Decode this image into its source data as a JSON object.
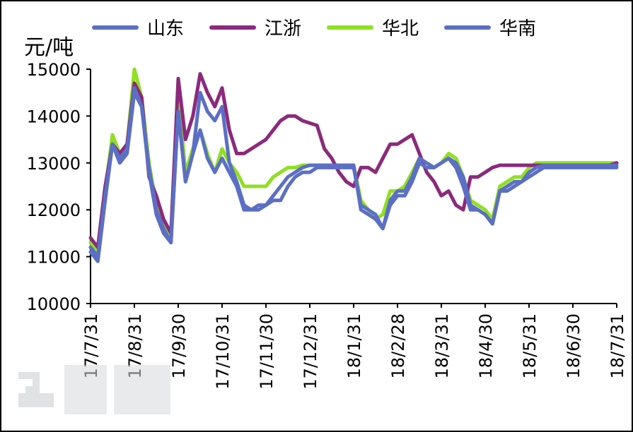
{
  "chart_data": {
    "type": "line",
    "ylabel": "元/吨",
    "ylim": [
      10000,
      15000
    ],
    "yticks": [
      10000,
      11000,
      12000,
      13000,
      14000,
      15000
    ],
    "xticks": [
      "17/7/31",
      "17/8/31",
      "17/9/30",
      "17/10/31",
      "17/11/30",
      "17/12/31",
      "18/1/31",
      "18/2/28",
      "18/3/31",
      "18/4/30",
      "18/5/31",
      "18/6/30",
      "18/7/31"
    ],
    "x": [
      "17/7/31",
      "17/8/5",
      "17/8/10",
      "17/8/15",
      "17/8/20",
      "17/8/25",
      "17/8/31",
      "17/9/5",
      "17/9/10",
      "17/9/15",
      "17/9/20",
      "17/9/25",
      "17/9/30",
      "17/10/5",
      "17/10/10",
      "17/10/15",
      "17/10/20",
      "17/10/25",
      "17/10/31",
      "17/11/5",
      "17/11/10",
      "17/11/15",
      "17/11/20",
      "17/11/25",
      "17/11/30",
      "17/12/5",
      "17/12/10",
      "17/12/15",
      "17/12/20",
      "17/12/25",
      "17/12/31",
      "18/1/5",
      "18/1/10",
      "18/1/15",
      "18/1/20",
      "18/1/25",
      "18/1/31",
      "18/2/5",
      "18/2/10",
      "18/2/15",
      "18/2/20",
      "18/2/25",
      "18/2/28",
      "18/3/5",
      "18/3/10",
      "18/3/15",
      "18/3/20",
      "18/3/25",
      "18/3/31",
      "18/4/5",
      "18/4/10",
      "18/4/15",
      "18/4/20",
      "18/4/25",
      "18/4/30",
      "18/5/5",
      "18/5/10",
      "18/5/15",
      "18/5/20",
      "18/5/25",
      "18/5/31",
      "18/6/5",
      "18/6/10",
      "18/6/15",
      "18/6/20",
      "18/6/25",
      "18/6/30",
      "18/7/5",
      "18/7/10",
      "18/7/15",
      "18/7/20",
      "18/7/25",
      "18/7/31"
    ],
    "series": [
      {
        "name": "山东",
        "color": "#5b6fc4",
        "values": [
          11200,
          11000,
          12300,
          13400,
          13100,
          13300,
          14600,
          14200,
          12900,
          12000,
          11600,
          11300,
          14100,
          12600,
          13200,
          14500,
          14100,
          13900,
          14200,
          13000,
          12600,
          12100,
          12000,
          12100,
          12100,
          12200,
          12200,
          12500,
          12700,
          12800,
          12800,
          12900,
          12900,
          12900,
          12900,
          12900,
          12900,
          12100,
          12000,
          11900,
          11600,
          12200,
          12400,
          12400,
          12700,
          13100,
          13000,
          12900,
          13000,
          13100,
          12900,
          12500,
          12000,
          12000,
          11900,
          11700,
          12400,
          12500,
          12600,
          12600,
          12800,
          12900,
          12950,
          12950,
          12950,
          12950,
          12950,
          12950,
          12950,
          12950,
          12950,
          12950,
          12950
        ]
      },
      {
        "name": "江浙",
        "color": "#8b2a7c",
        "values": [
          11400,
          11200,
          12500,
          13400,
          13200,
          13400,
          14700,
          14400,
          12700,
          12300,
          11800,
          11500,
          14800,
          13500,
          14000,
          14900,
          14500,
          14200,
          14600,
          13700,
          13200,
          13200,
          13300,
          13400,
          13500,
          13700,
          13900,
          14000,
          14000,
          13900,
          13850,
          13800,
          13300,
          13100,
          12800,
          12600,
          12500,
          12900,
          12900,
          12800,
          13100,
          13400,
          13400,
          13500,
          13600,
          13200,
          12800,
          12600,
          12300,
          12400,
          12100,
          12000,
          12700,
          12700,
          12800,
          12900,
          12950,
          12950,
          12950,
          12950,
          12950,
          12950,
          12950,
          12950,
          12950,
          12950,
          12950,
          12950,
          12950,
          12950,
          12950,
          12950,
          13000
        ]
      },
      {
        "name": "华北",
        "color": "#8fe020",
        "values": [
          11300,
          11100,
          12400,
          13600,
          13200,
          13400,
          15000,
          14400,
          13000,
          12100,
          11700,
          11400,
          14500,
          12800,
          13300,
          13700,
          13200,
          12800,
          13300,
          13000,
          12800,
          12500,
          12500,
          12500,
          12500,
          12700,
          12800,
          12900,
          12900,
          12950,
          12950,
          12950,
          12950,
          12950,
          12950,
          12950,
          12950,
          12200,
          12000,
          11800,
          11900,
          12400,
          12400,
          12500,
          12800,
          13100,
          13000,
          12900,
          13000,
          13200,
          13100,
          12700,
          12200,
          12100,
          12000,
          11800,
          12500,
          12600,
          12700,
          12700,
          12900,
          13000,
          13000,
          13000,
          13000,
          13000,
          13000,
          13000,
          13000,
          13000,
          13000,
          13000,
          13000
        ]
      },
      {
        "name": "华南",
        "color": "#5b6fc4",
        "values": [
          11100,
          10900,
          12200,
          13400,
          13000,
          13200,
          14500,
          14200,
          12800,
          11900,
          11500,
          11300,
          14100,
          12600,
          13200,
          13700,
          13100,
          12800,
          13100,
          12800,
          12500,
          12000,
          12000,
          12000,
          12100,
          12300,
          12500,
          12700,
          12800,
          12900,
          12950,
          12950,
          12950,
          12950,
          12950,
          12950,
          12950,
          12000,
          11900,
          11800,
          11600,
          12100,
          12300,
          12300,
          12600,
          13000,
          12900,
          12900,
          13000,
          13100,
          13000,
          12700,
          12100,
          12000,
          11900,
          11700,
          12400,
          12400,
          12500,
          12600,
          12700,
          12800,
          12900,
          12900,
          12900,
          12900,
          12900,
          12900,
          12900,
          12900,
          12900,
          12900,
          12900
        ]
      }
    ]
  }
}
